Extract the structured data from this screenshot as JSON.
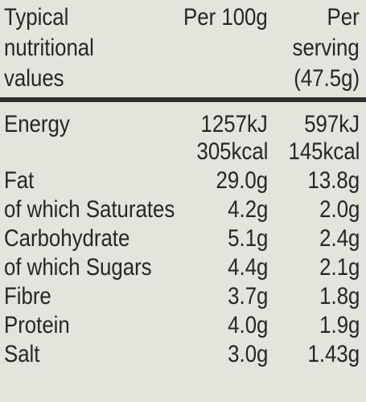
{
  "header": {
    "label": [
      "Typical",
      "nutritional",
      "values"
    ],
    "per_100g": [
      "Per 100g"
    ],
    "per_serving": [
      "Per",
      "serving",
      "(47.5g)"
    ]
  },
  "rows": [
    {
      "name": "Energy",
      "per_100g": [
        "1257kJ",
        "305kcal"
      ],
      "per_serving": [
        "597kJ",
        "145kcal"
      ]
    },
    {
      "name": "Fat",
      "per_100g": [
        "29.0g"
      ],
      "per_serving": [
        "13.8g"
      ]
    },
    {
      "name": "of which Saturates",
      "per_100g": [
        "4.2g"
      ],
      "per_serving": [
        "2.0g"
      ]
    },
    {
      "name": "Carbohydrate",
      "per_100g": [
        "5.1g"
      ],
      "per_serving": [
        "2.4g"
      ]
    },
    {
      "name": "of which Sugars",
      "per_100g": [
        "4.4g"
      ],
      "per_serving": [
        "2.1g"
      ]
    },
    {
      "name": "Fibre",
      "per_100g": [
        "3.7g"
      ],
      "per_serving": [
        "1.8g"
      ]
    },
    {
      "name": "Protein",
      "per_100g": [
        "4.0g"
      ],
      "per_serving": [
        "1.9g"
      ]
    },
    {
      "name": "Salt",
      "per_100g": [
        "3.0g"
      ],
      "per_serving": [
        "1.43g"
      ]
    }
  ]
}
